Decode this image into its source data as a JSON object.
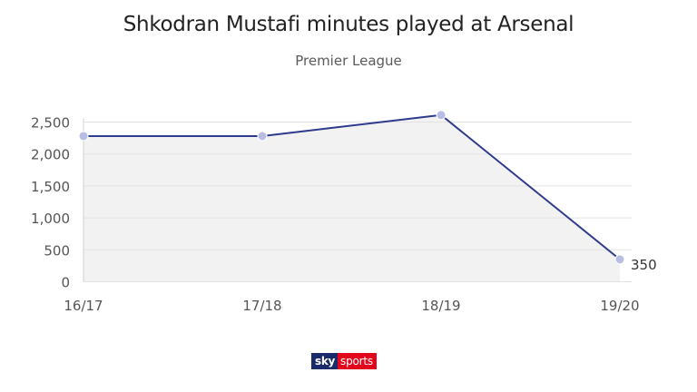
{
  "title": "Shkodran Mustafi minutes played at Arsenal",
  "subtitle": "Premier League",
  "logo": {
    "part1": "sky",
    "part2": "sports"
  },
  "colors": {
    "line": "#2e3a8c",
    "marker": "#b8bde3",
    "area": "#f2f2f2",
    "grid": "#e3e3e3",
    "axis_text": "#555555"
  },
  "chart_data": {
    "type": "line",
    "title": "Shkodran Mustafi minutes played at Arsenal",
    "subtitle": "Premier League",
    "xlabel": "",
    "ylabel": "",
    "categories": [
      "16/17",
      "17/18",
      "18/19",
      "19/20"
    ],
    "series": [
      {
        "values": [
          2280,
          2280,
          2610,
          350
        ]
      }
    ],
    "ylim": [
      0,
      2500
    ],
    "yticks": [
      0,
      500,
      1000,
      1500,
      2000,
      2500
    ],
    "ytick_labels": [
      "0",
      "500",
      "1,000",
      "1,500",
      "2,000",
      "2,500"
    ],
    "annotations": [
      {
        "category": "19/20",
        "text": "350"
      }
    ],
    "grid": true,
    "area_fill": true
  }
}
